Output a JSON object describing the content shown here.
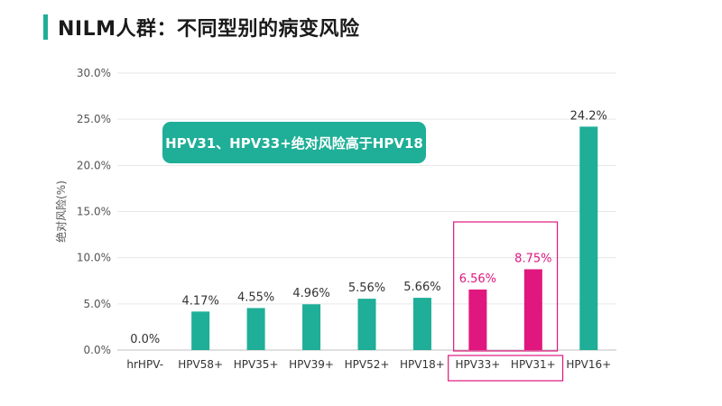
{
  "header": {
    "title": "NILM人群：不同型别的病变风险"
  },
  "callout": {
    "text": "HPV31、HPV33+绝对风险高于HPV18"
  },
  "colors": {
    "teal": "#1fae97",
    "highlight": "#e0177e",
    "grid": "#e6e6e6",
    "axis_text": "#555555"
  },
  "chart_data": {
    "type": "bar",
    "categories": [
      "hrHPV-",
      "HPV58+",
      "HPV35+",
      "HPV39+",
      "HPV52+",
      "HPV18+",
      "HPV33+",
      "HPV31+",
      "HPV16+"
    ],
    "values": [
      0.0,
      4.17,
      4.55,
      4.96,
      5.56,
      5.66,
      6.56,
      8.75,
      24.2
    ],
    "data_labels": [
      "0.0%",
      "4.17%",
      "4.55%",
      "4.96%",
      "5.56%",
      "5.66%",
      "6.56%",
      "8.75%",
      "24.2%"
    ],
    "highlighted": [
      "HPV33+",
      "HPV31+"
    ],
    "ylabel": "绝对风险(%)",
    "ylim": [
      0,
      30
    ],
    "yticks": [
      "0.0%",
      "5.0%",
      "10.0%",
      "15.0%",
      "20.0%",
      "25.0%",
      "30.0%"
    ],
    "grid": true,
    "legend": "none"
  }
}
